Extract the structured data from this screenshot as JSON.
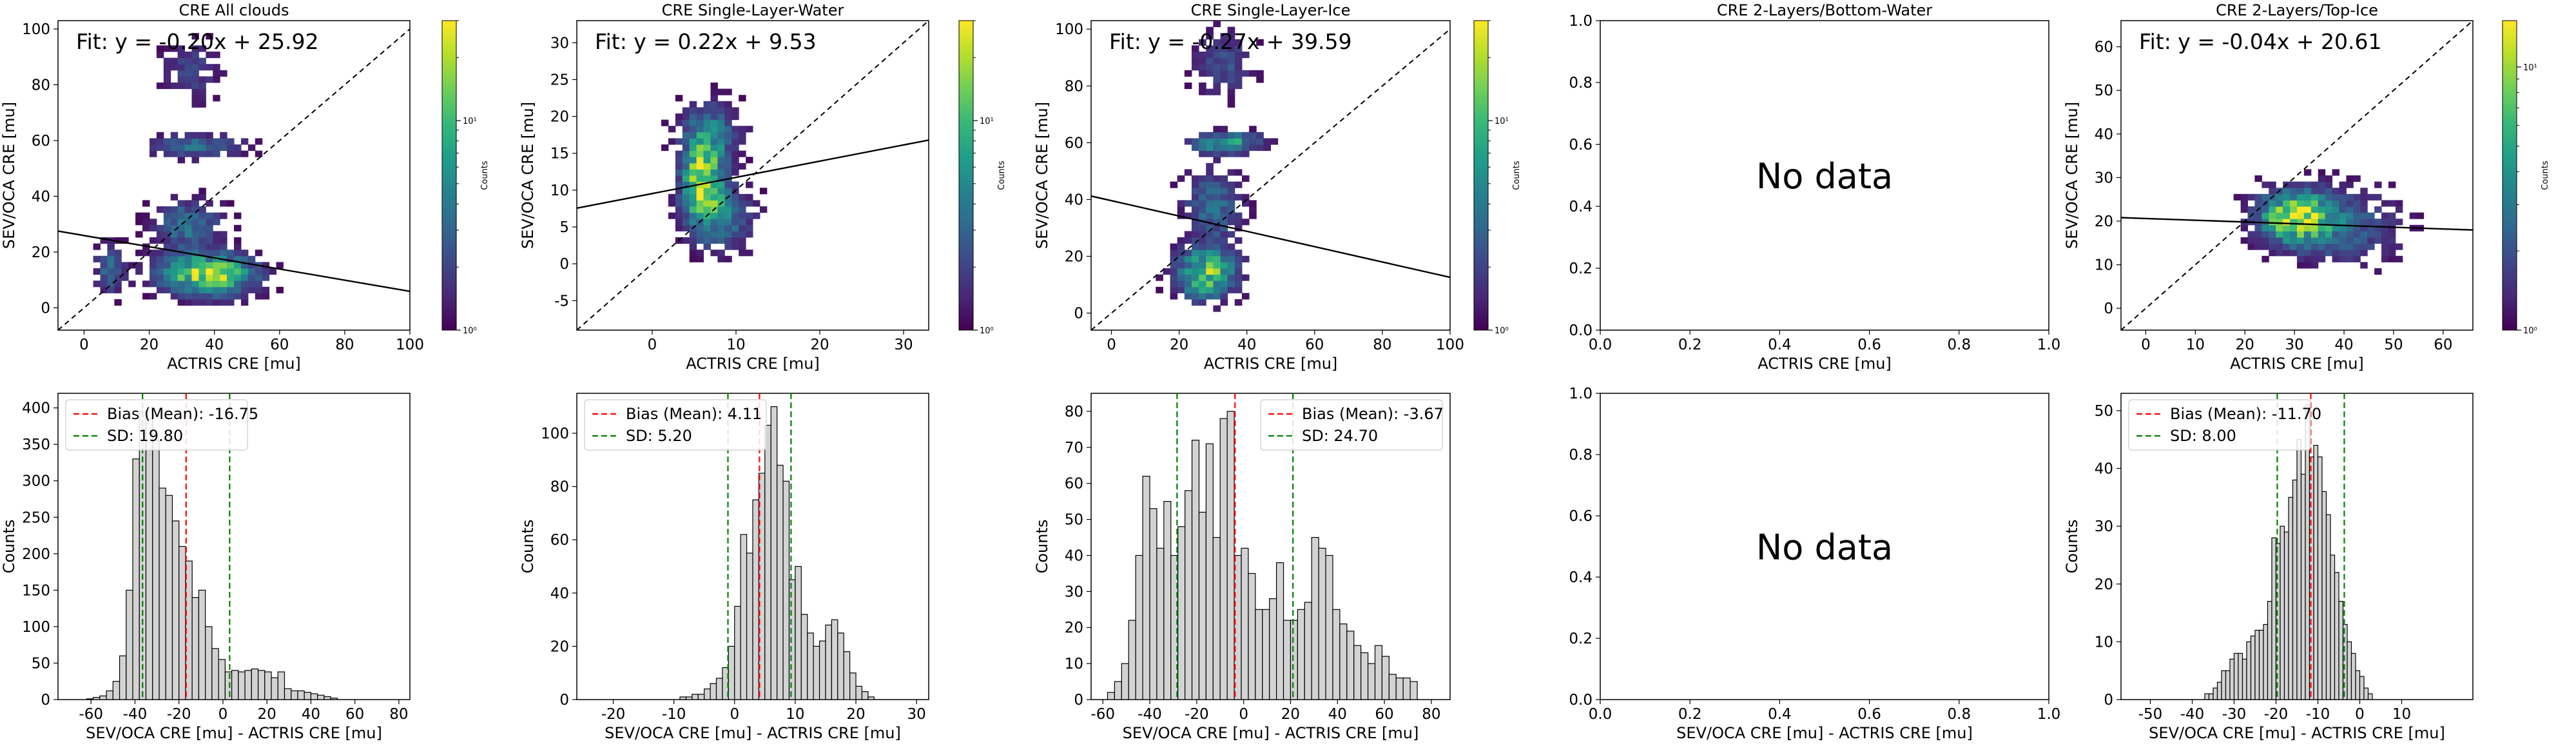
{
  "colors": {
    "axis": "#000000",
    "bar_fill": "#d3d3d3",
    "bar_edge": "#000000",
    "bias_line": "#ff0000",
    "sd_line": "#008000",
    "identity_line": "#000000",
    "fit_line": "#000000",
    "viridis": [
      "#440154",
      "#482878",
      "#3e4989",
      "#31688e",
      "#26828e",
      "#1f9e89",
      "#35b779",
      "#6ece58",
      "#b5de2b",
      "#fde725"
    ]
  },
  "colorbar": {
    "label": "Counts",
    "log_scale": true,
    "min_label": "10⁰",
    "mid_label": "10¹"
  },
  "chart_data": [
    {
      "type": "heatmap",
      "title": "CRE All clouds",
      "xlabel": "ACTRIS CRE [mu]",
      "ylabel": "SEV/OCA CRE [mu]",
      "xlim": [
        -8,
        100
      ],
      "ylim": [
        -8,
        103
      ],
      "xticks": [
        0,
        20,
        40,
        60,
        80,
        100
      ],
      "yticks": [
        0,
        20,
        40,
        60,
        80,
        100
      ],
      "fit_label": "Fit: y = -0.20x + 25.92",
      "fit": {
        "slope": -0.2,
        "intercept": 25.92
      },
      "identity_line": true,
      "colorbar_max": 30,
      "clusters": [
        {
          "cx": 38,
          "cy": 12,
          "sx": 10,
          "sy": 5,
          "w": 1.0
        },
        {
          "cx": 32,
          "cy": 30,
          "sx": 7,
          "sy": 6,
          "w": 0.45
        },
        {
          "cx": 35,
          "cy": 58,
          "sx": 10,
          "sy": 3,
          "w": 0.4
        },
        {
          "cx": 33,
          "cy": 85,
          "sx": 6,
          "sy": 8,
          "w": 0.25
        },
        {
          "cx": 8,
          "cy": 14,
          "sx": 3,
          "sy": 6,
          "w": 0.4
        }
      ]
    },
    {
      "type": "histogram",
      "title": "",
      "xlabel": "SEV/OCA CRE [mu] - ACTRIS CRE [mu]",
      "ylabel": "Counts",
      "xlim": [
        -75,
        85
      ],
      "ylim": [
        0,
        420
      ],
      "xticks": [
        -60,
        -40,
        -20,
        0,
        20,
        40,
        60,
        80
      ],
      "yticks": [
        0,
        50,
        100,
        150,
        200,
        250,
        300,
        350,
        400
      ],
      "bin_start": -62,
      "bin_width": 3,
      "counts": [
        1,
        3,
        5,
        12,
        25,
        60,
        150,
        330,
        395,
        385,
        355,
        290,
        280,
        245,
        210,
        190,
        140,
        150,
        100,
        70,
        55,
        38,
        40,
        38,
        40,
        42,
        40,
        38,
        30,
        38,
        15,
        12,
        12,
        10,
        8,
        6,
        4,
        2
      ],
      "bias": -16.75,
      "sd": 19.8,
      "legend": [
        "Bias (Mean): -16.75",
        "SD: 19.80"
      ]
    },
    {
      "type": "heatmap",
      "title": "CRE Single-Layer-Water",
      "xlabel": "ACTRIS CRE [mu]",
      "ylabel": "SEV/OCA CRE [mu]",
      "xlim": [
        -9,
        33
      ],
      "ylim": [
        -9,
        33
      ],
      "xticks": [
        0,
        10,
        20,
        30
      ],
      "yticks": [
        -5,
        0,
        5,
        10,
        15,
        20,
        25,
        30
      ],
      "fit_label": "Fit: y = 0.22x + 9.53",
      "fit": {
        "slope": 0.22,
        "intercept": 9.53
      },
      "identity_line": true,
      "colorbar_max": 30,
      "clusters": [
        {
          "cx": 6,
          "cy": 11,
          "sx": 1.7,
          "sy": 4,
          "w": 1.0
        },
        {
          "cx": 7,
          "cy": 18,
          "sx": 2.5,
          "sy": 3,
          "w": 0.4
        },
        {
          "cx": 9,
          "cy": 6,
          "sx": 2.5,
          "sy": 3,
          "w": 0.35
        }
      ]
    },
    {
      "type": "histogram",
      "title": "",
      "xlabel": "SEV/OCA CRE [mu] - ACTRIS CRE [mu]",
      "ylabel": "Counts",
      "xlim": [
        -26,
        32
      ],
      "ylim": [
        0,
        115
      ],
      "xticks": [
        -20,
        -10,
        0,
        10,
        20,
        30
      ],
      "yticks": [
        0,
        20,
        40,
        60,
        80,
        100
      ],
      "bin_start": -9,
      "bin_width": 1,
      "counts": [
        1,
        1,
        2,
        2,
        4,
        6,
        8,
        12,
        20,
        35,
        62,
        55,
        75,
        85,
        103,
        110,
        88,
        82,
        45,
        50,
        32,
        25,
        20,
        22,
        28,
        30,
        25,
        18,
        10,
        5,
        3,
        1
      ],
      "bias": 4.11,
      "sd": 5.2,
      "legend": [
        "Bias (Mean): 4.11",
        "SD: 5.20"
      ]
    },
    {
      "type": "heatmap",
      "title": "CRE Single-Layer-Ice",
      "xlabel": "ACTRIS CRE [mu]",
      "ylabel": "SEV/OCA CRE [mu]",
      "xlim": [
        -6,
        100
      ],
      "ylim": [
        -6,
        103
      ],
      "xticks": [
        0,
        20,
        40,
        60,
        80,
        100
      ],
      "yticks": [
        0,
        20,
        40,
        60,
        80,
        100
      ],
      "fit_label": "Fit: y = -0.27x + 39.59",
      "fit": {
        "slope": -0.27,
        "intercept": 39.59
      },
      "identity_line": true,
      "colorbar_max": 30,
      "clusters": [
        {
          "cx": 28,
          "cy": 14,
          "sx": 6,
          "sy": 6,
          "w": 0.9
        },
        {
          "cx": 34,
          "cy": 60,
          "sx": 7,
          "sy": 2.5,
          "w": 0.7
        },
        {
          "cx": 30,
          "cy": 38,
          "sx": 6,
          "sy": 9,
          "w": 0.4
        },
        {
          "cx": 33,
          "cy": 88,
          "sx": 6,
          "sy": 8,
          "w": 0.3
        }
      ]
    },
    {
      "type": "histogram",
      "title": "",
      "xlabel": "SEV/OCA CRE [mu] - ACTRIS CRE [mu]",
      "ylabel": "Counts",
      "xlim": [
        -65,
        88
      ],
      "ylim": [
        0,
        85
      ],
      "xticks": [
        -60,
        -40,
        -20,
        0,
        20,
        40,
        60,
        80
      ],
      "yticks": [
        0,
        10,
        20,
        30,
        40,
        50,
        60,
        70,
        80
      ],
      "bin_start": -58,
      "bin_width": 3,
      "counts": [
        2,
        5,
        10,
        22,
        40,
        62,
        53,
        42,
        55,
        40,
        48,
        58,
        72,
        52,
        71,
        45,
        78,
        80,
        40,
        42,
        35,
        25,
        25,
        28,
        38,
        22,
        22,
        25,
        27,
        45,
        42,
        40,
        25,
        21,
        19,
        15,
        13,
        10,
        15,
        12,
        7,
        6,
        6,
        5
      ],
      "bias": -3.67,
      "sd": 24.7,
      "legend": [
        "Bias (Mean): -3.67",
        "SD: 24.70"
      ]
    },
    {
      "type": "heatmap",
      "title": "CRE 2-Layers/Bottom-Water",
      "xlabel": "ACTRIS CRE [mu]",
      "ylabel": "",
      "xlim": [
        0,
        1
      ],
      "ylim": [
        0,
        1
      ],
      "xticks": [
        "0.0",
        "0.2",
        "0.4",
        "0.6",
        "0.8",
        "1.0"
      ],
      "yticks": [
        "0.0",
        "0.2",
        "0.4",
        "0.6",
        "0.8",
        "1.0"
      ],
      "no_data_label": "No data"
    },
    {
      "type": "histogram",
      "title": "",
      "xlabel": "SEV/OCA CRE [mu] - ACTRIS CRE [mu]",
      "ylabel": "",
      "xlim": [
        0,
        1
      ],
      "ylim": [
        0,
        1
      ],
      "xticks": [
        "0.0",
        "0.2",
        "0.4",
        "0.6",
        "0.8",
        "1.0"
      ],
      "yticks": [
        "0.0",
        "0.2",
        "0.4",
        "0.6",
        "0.8",
        "1.0"
      ],
      "no_data_label": "No data"
    },
    {
      "type": "heatmap",
      "title": "CRE 2-Layers/Top-Ice",
      "xlabel": "ACTRIS CRE [mu]",
      "ylabel": "SEV/OCA CRE [mu]",
      "xlim": [
        -5,
        66
      ],
      "ylim": [
        -5,
        66
      ],
      "xticks": [
        0,
        10,
        20,
        30,
        40,
        50,
        60
      ],
      "yticks": [
        0,
        10,
        20,
        30,
        40,
        50,
        60
      ],
      "fit_label": "Fit: y = -0.04x + 20.61",
      "fit": {
        "slope": -0.04,
        "intercept": 20.61
      },
      "identity_line": true,
      "colorbar_max": 15,
      "clusters": [
        {
          "cx": 30,
          "cy": 21,
          "sx": 5,
          "sy": 4,
          "w": 1.0
        },
        {
          "cx": 40,
          "cy": 19,
          "sx": 8,
          "sy": 6,
          "w": 0.35
        }
      ]
    },
    {
      "type": "histogram",
      "title": "",
      "xlabel": "SEV/OCA CRE [mu] - ACTRIS CRE [mu]",
      "ylabel": "Counts",
      "xlim": [
        -57,
        27
      ],
      "ylim": [
        0,
        53
      ],
      "xticks": [
        -50,
        -40,
        -30,
        -20,
        -10,
        0,
        10
      ],
      "yticks": [
        0,
        10,
        20,
        30,
        40,
        50
      ],
      "bin_start": -37,
      "bin_width": 1,
      "counts": [
        1,
        1,
        2,
        3,
        5,
        5,
        7,
        8,
        8,
        7,
        10,
        11,
        12,
        12,
        13,
        17,
        28,
        27,
        30,
        29,
        35,
        38,
        45,
        39,
        51,
        42,
        44,
        42,
        36,
        32,
        25,
        22,
        17,
        13,
        10,
        8,
        5,
        4,
        2,
        1
      ],
      "bias": -11.7,
      "sd": 8.0,
      "legend": [
        "Bias (Mean): -11.70",
        "SD: 8.00"
      ]
    }
  ]
}
